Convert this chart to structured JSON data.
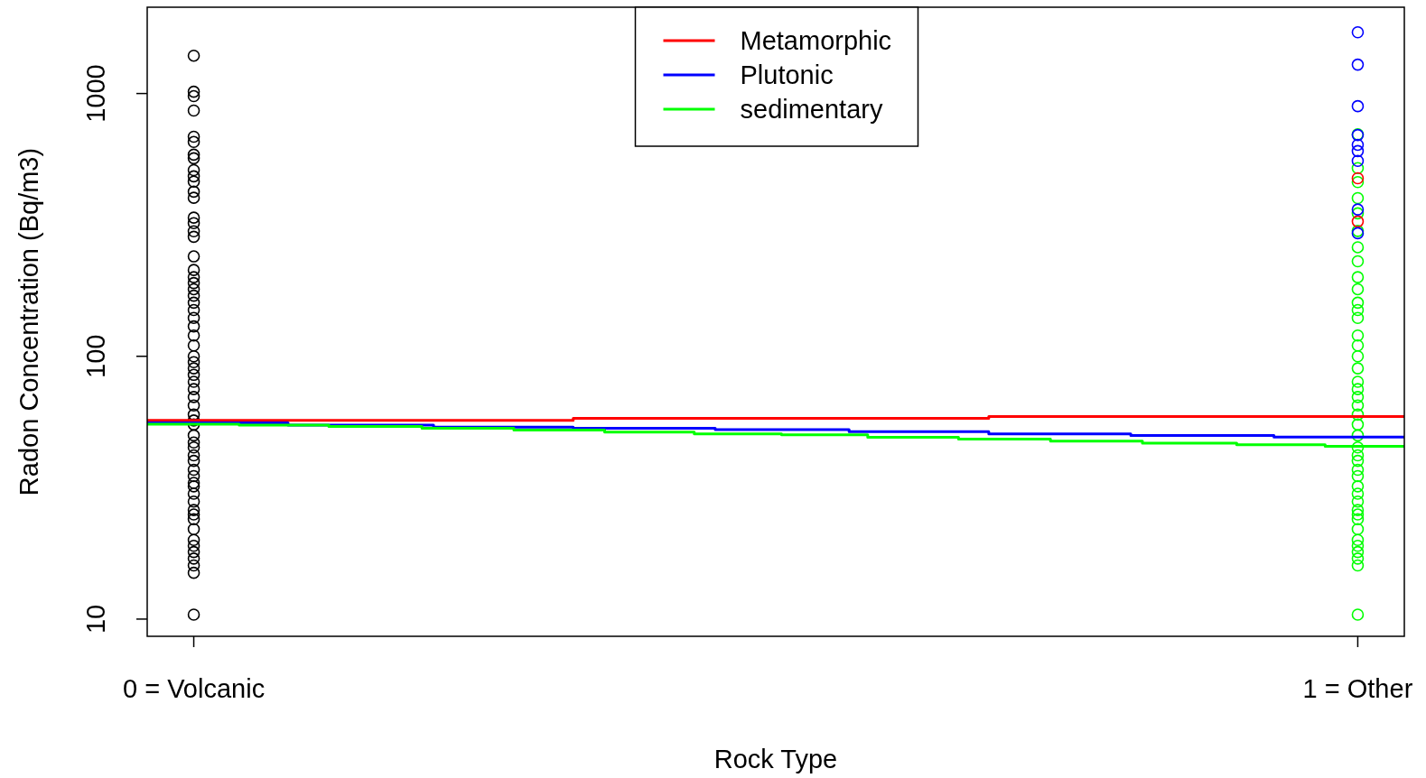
{
  "chart_data": {
    "type": "step",
    "xlabel": "Rock Type",
    "ylabel": "Radon Concentration (Bq/m3)",
    "log": "y",
    "grid": false,
    "legend": "top",
    "xlim": [
      -0.04,
      1.04
    ],
    "ylim": [
      8.6,
      2130
    ],
    "xticks": [
      {
        "value": 0,
        "label": "0 = Volcanic"
      },
      {
        "value": 1,
        "label": "1 = Other"
      }
    ],
    "yticks": [
      10,
      100,
      1000
    ],
    "series": [
      {
        "type": "scatter",
        "marker": "circle",
        "color": "#000000",
        "x": [
          0,
          0,
          0,
          0,
          0,
          0,
          0,
          0,
          0,
          0,
          0,
          0,
          0,
          0,
          0,
          0,
          0,
          0,
          0,
          0,
          0,
          0,
          0,
          0,
          0,
          0,
          0,
          0,
          0,
          0,
          0,
          0,
          0,
          0,
          0,
          0,
          0,
          0,
          0,
          0,
          0,
          0,
          0,
          0,
          0,
          0,
          0,
          0,
          0,
          0,
          0,
          0,
          0,
          0,
          0,
          0,
          0,
          0,
          0,
          0,
          0,
          0
        ],
        "values": [
          1393,
          1016,
          977,
          861,
          685,
          654,
          585,
          567,
          511,
          484,
          462,
          423,
          401,
          337,
          321,
          299,
          285,
          240,
          213,
          200,
          190,
          180,
          170,
          160,
          150,
          140,
          130,
          120,
          110,
          100,
          95,
          90,
          85,
          80,
          75,
          70,
          65,
          60,
          57,
          55,
          50,
          45,
          42,
          40,
          37,
          35,
          32,
          30,
          28,
          26,
          24,
          22,
          20,
          19,
          18,
          17,
          16,
          15,
          10.4,
          25,
          33,
          47
        ]
      },
      {
        "type": "scatter",
        "marker": "circle",
        "color": "#00ff00",
        "x": [
          1,
          1,
          1,
          1,
          1,
          1,
          1,
          1,
          1,
          1,
          1,
          1,
          1,
          1,
          1,
          1,
          1,
          1,
          1,
          1,
          1,
          1,
          1,
          1,
          1,
          1,
          1,
          1,
          1,
          1,
          1,
          1,
          1,
          1,
          1,
          1,
          1,
          1,
          1,
          1,
          1,
          1
        ],
        "values": [
          700,
          520,
          460,
          400,
          350,
          300,
          260,
          230,
          200,
          180,
          160,
          140,
          120,
          100,
          90,
          80,
          70,
          65,
          60,
          55,
          50,
          45,
          42,
          40,
          37,
          35,
          32,
          30,
          28,
          26,
          24,
          22,
          20,
          19,
          18,
          17,
          16,
          10.4,
          150,
          110,
          75,
          25
        ]
      },
      {
        "type": "scatter",
        "marker": "circle",
        "color": "#ff0000",
        "x": [
          1,
          1
        ],
        "values": [
          476,
          326
        ]
      },
      {
        "type": "scatter",
        "marker": "circle",
        "color": "#0000ff",
        "x": [
          1,
          1,
          1,
          1,
          1,
          1,
          1,
          1,
          1
        ],
        "values": [
          1710,
          1288,
          895,
          695,
          638,
          604,
          554,
          362,
          294
        ]
      },
      {
        "name": "Metamorphic",
        "marker": "none",
        "color": "#ff0000",
        "x": [
          -0.04,
          0.326,
          0.683,
          1.04
        ],
        "values": [
          57.1,
          58.1,
          59.0,
          59.0
        ]
      },
      {
        "name": "Plutonic",
        "marker": "none",
        "color": "#0000ff",
        "x": [
          -0.04,
          0.081,
          0.206,
          0.326,
          0.448,
          0.563,
          0.683,
          0.805,
          0.928,
          1.04
        ],
        "values": [
          55.8,
          54.7,
          53.8,
          53.2,
          52.6,
          51.7,
          50.7,
          50.0,
          49.3,
          49.3
        ]
      },
      {
        "name": "sedimentary",
        "marker": "none",
        "color": "#00ff00",
        "x": [
          -0.04,
          0.039,
          0.116,
          0.196,
          0.275,
          0.353,
          0.43,
          0.505,
          0.579,
          0.657,
          0.736,
          0.815,
          0.896,
          0.972,
          1.04
        ],
        "values": [
          55.2,
          54.7,
          54.1,
          53.2,
          52.4,
          51.5,
          50.7,
          50.3,
          49.2,
          48.4,
          47.6,
          46.7,
          46.1,
          45.4,
          45.4
        ]
      }
    ]
  }
}
